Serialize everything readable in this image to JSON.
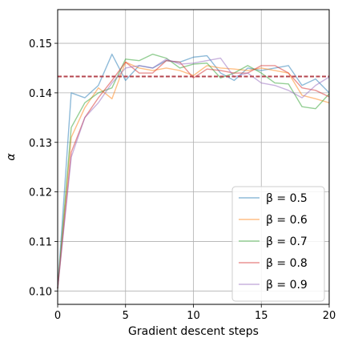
{
  "chart_data": {
    "type": "line",
    "title": "",
    "xlabel": "Gradient descent steps",
    "ylabel": "α",
    "xlim": [
      0,
      20
    ],
    "ylim": [
      0.0973,
      0.1568
    ],
    "x_ticks": [
      "0",
      "5",
      "10",
      "15",
      "20"
    ],
    "y_ticks": [
      "0.10",
      "0.11",
      "0.12",
      "0.13",
      "0.14",
      "0.15"
    ],
    "grid": true,
    "legend_position": "lower-right",
    "x": [
      0,
      1,
      2,
      3,
      4,
      5,
      6,
      7,
      8,
      9,
      10,
      11,
      12,
      13,
      14,
      15,
      16,
      17,
      18,
      19,
      20
    ],
    "reference_line": {
      "value": 0.1433,
      "style": "dashed",
      "color": "#b5454f"
    },
    "series": [
      {
        "name": "β = 0.5",
        "color": "#1f77b4",
        "values": [
          0.1005,
          0.14,
          0.139,
          0.1415,
          0.1478,
          0.1425,
          0.1455,
          0.145,
          0.1465,
          0.1462,
          0.1472,
          0.1475,
          0.144,
          0.1425,
          0.145,
          0.1445,
          0.145,
          0.1455,
          0.1415,
          0.1428,
          0.14
        ]
      },
      {
        "name": "β = 0.6",
        "color": "#ff7f0e",
        "values": [
          0.1005,
          0.131,
          0.137,
          0.141,
          0.1388,
          0.1462,
          0.145,
          0.1445,
          0.145,
          0.1445,
          0.1435,
          0.1455,
          0.145,
          0.1448,
          0.1445,
          0.145,
          0.1445,
          0.144,
          0.1395,
          0.1388,
          0.138
        ]
      },
      {
        "name": "β = 0.7",
        "color": "#2ca02c",
        "values": [
          0.1005,
          0.133,
          0.138,
          0.14,
          0.141,
          0.1468,
          0.1465,
          0.1478,
          0.147,
          0.145,
          0.1458,
          0.146,
          0.143,
          0.144,
          0.1455,
          0.144,
          0.142,
          0.1418,
          0.1372,
          0.1368,
          0.1398
        ]
      },
      {
        "name": "β = 0.8",
        "color": "#d62728",
        "values": [
          0.1005,
          0.128,
          0.135,
          0.139,
          0.1425,
          0.1462,
          0.144,
          0.144,
          0.1465,
          0.1462,
          0.143,
          0.1448,
          0.1445,
          0.144,
          0.144,
          0.1455,
          0.1455,
          0.144,
          0.141,
          0.1405,
          0.1392
        ]
      },
      {
        "name": "β = 0.9",
        "color": "#9467bd",
        "values": [
          0.1005,
          0.127,
          0.135,
          0.138,
          0.142,
          0.145,
          0.1455,
          0.145,
          0.1468,
          0.1458,
          0.146,
          0.1465,
          0.147,
          0.1432,
          0.144,
          0.142,
          0.1415,
          0.1405,
          0.139,
          0.1415,
          0.1432
        ]
      }
    ]
  }
}
